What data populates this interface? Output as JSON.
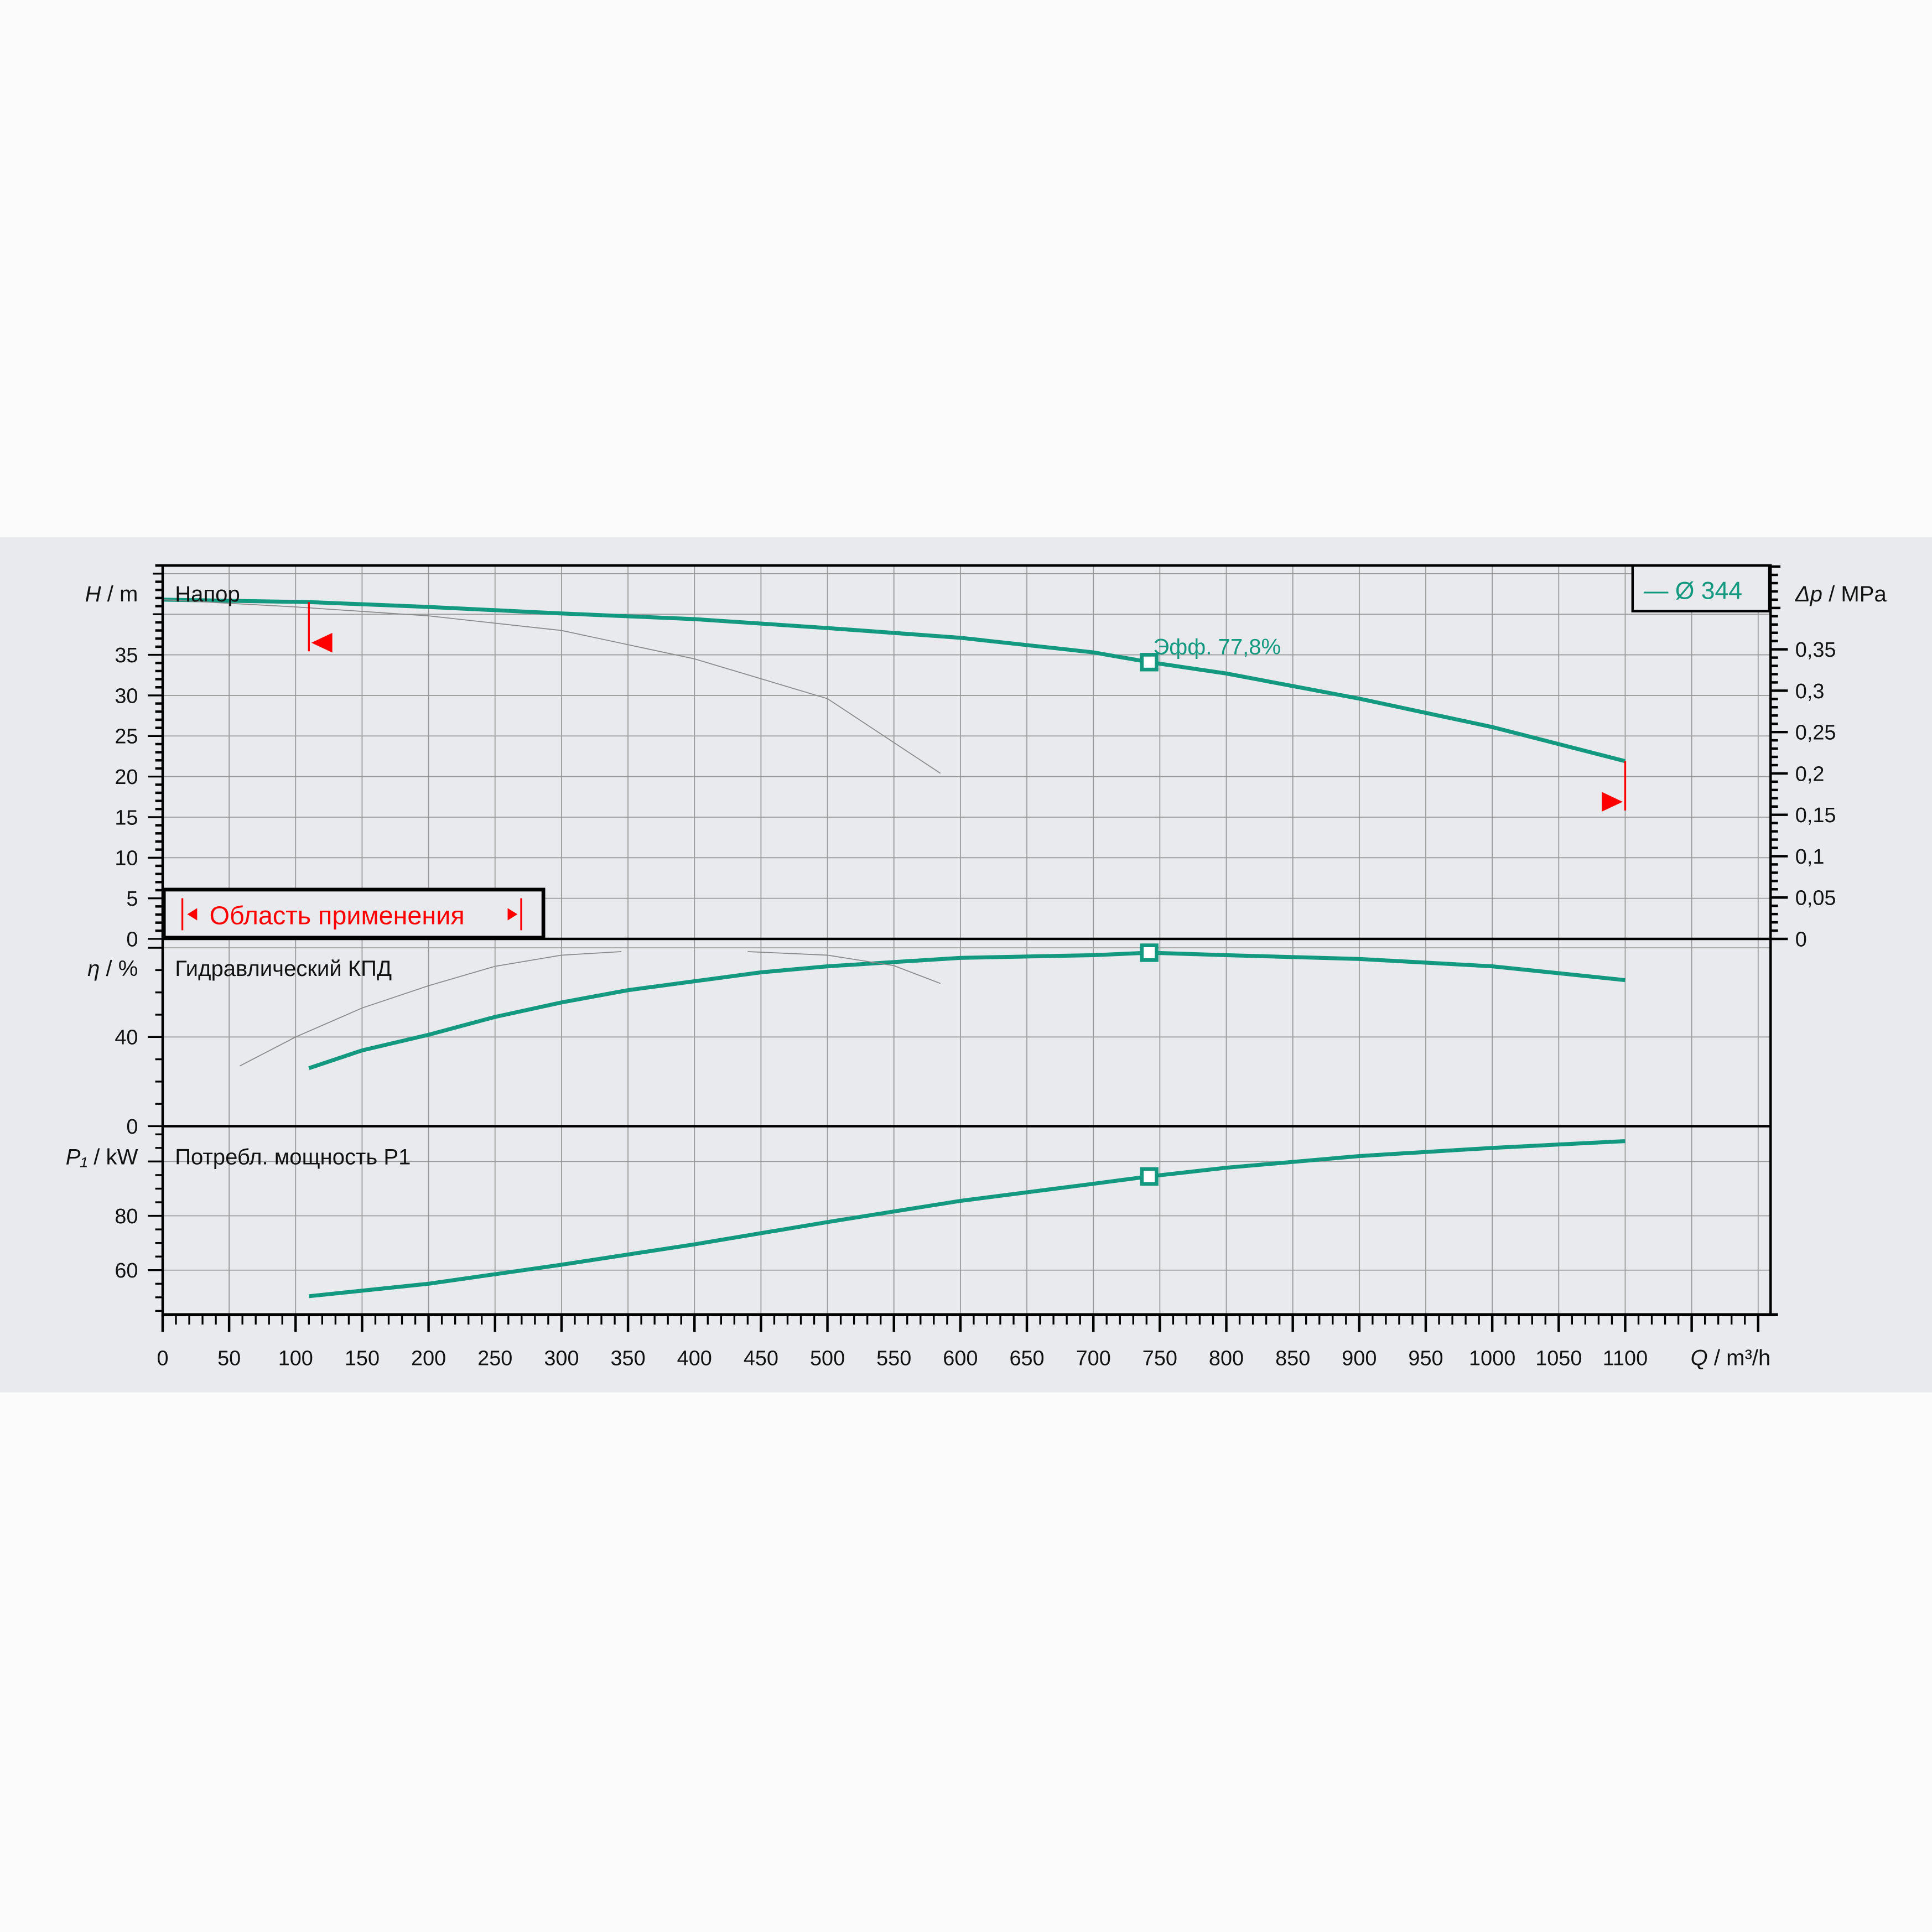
{
  "chart_data": {
    "type": "line",
    "x_axis": {
      "label_symbol": "Q",
      "label_unit": " / m³/h",
      "range": [
        0,
        1200
      ],
      "ticks": [
        0,
        50,
        100,
        150,
        200,
        250,
        300,
        350,
        400,
        450,
        500,
        550,
        600,
        650,
        700,
        750,
        800,
        850,
        900,
        950,
        1000,
        1050,
        1100
      ]
    },
    "grid": true,
    "legend": {
      "label": "— Ø 344",
      "placement": "top-right"
    },
    "colors": {
      "curve": "#12997f",
      "reference": "#8a8a8a",
      "limits": "#ff0000",
      "band": "#e9eaee"
    },
    "application_range": {
      "label": "Область применения",
      "q_min": 110,
      "q_max": 1100
    },
    "duty_point": {
      "q": 742,
      "label": "Эфф.  77,8%"
    },
    "panels": [
      {
        "id": "head",
        "title": "Напор",
        "ylabel_symbol": "H",
        "ylabel_unit": " / m",
        "ylim": [
          0,
          46
        ],
        "yticks": [
          0,
          5,
          10,
          15,
          20,
          25,
          30,
          35
        ],
        "secondary_axis": {
          "label_symbol": "Δp",
          "label_unit": " / MPa",
          "ticks": [
            "0",
            "0,05",
            "0,1",
            "0,15",
            "0,2",
            "0,25",
            "0,3",
            "0,35"
          ],
          "values": [
            0,
            0.05,
            0.1,
            0.15,
            0.2,
            0.25,
            0.3,
            0.35
          ]
        },
        "series": [
          {
            "name": "Ø 344",
            "x": [
              0,
              110,
              200,
              300,
              400,
              500,
              600,
              700,
              742,
              800,
              900,
              1000,
              1100
            ],
            "y": [
              41.8,
              41.5,
              40.9,
              40.1,
              39.4,
              38.3,
              37.1,
              35.3,
              34.1,
              32.7,
              29.6,
              26.1,
              21.9
            ]
          },
          {
            "x": [
              0,
              100,
              200,
              300,
              400,
              500,
              585
            ],
            "y": [
              41.8,
              40.9,
              39.8,
              38.0,
              34.5,
              29.6,
              20.4
            ]
          }
        ]
      },
      {
        "id": "efficiency",
        "title": "Гидравлический КПД",
        "ylabel_symbol": "η",
        "ylabel_unit": " / %",
        "ylim": [
          0,
          84
        ],
        "yticks": [
          0,
          40
        ],
        "series": [
          {
            "name": "Ø 344",
            "x": [
              110,
              150,
              200,
              250,
              300,
              350,
              400,
              450,
              500,
              600,
              700,
              742,
              800,
              900,
              1000,
              1100
            ],
            "y": [
              26,
              34,
              41,
              49,
              55.5,
              61,
              65,
              69,
              71.7,
              75.5,
              76.7,
              77.8,
              76.7,
              75,
              71.7,
              65.5
            ]
          },
          {
            "x": [
              58,
              100,
              150,
              200,
              250,
              300,
              345
            ],
            "y": [
              27,
              40,
              53,
              63,
              71.7,
              76.7,
              78.3
            ]
          },
          {
            "x": [
              440,
              500,
              550,
              585
            ],
            "y": [
              78.3,
              76.7,
              72,
              64
            ]
          }
        ]
      },
      {
        "id": "power",
        "title": "Потребл. мощность P1",
        "ylabel_symbol": "P₁",
        "ylabel_unit": " / kW",
        "ylim": [
          43.6,
          113
        ],
        "yticks": [
          60,
          80
        ],
        "series": [
          {
            "name": "Ø 344",
            "x": [
              110,
              200,
              300,
              400,
              500,
              600,
              700,
              742,
              800,
              900,
              1000,
              1100
            ],
            "y": [
              50.4,
              55,
              62,
              69.5,
              77.7,
              85.5,
              91.8,
              94.5,
              97.7,
              102,
              105,
              107.5
            ]
          }
        ]
      }
    ]
  }
}
